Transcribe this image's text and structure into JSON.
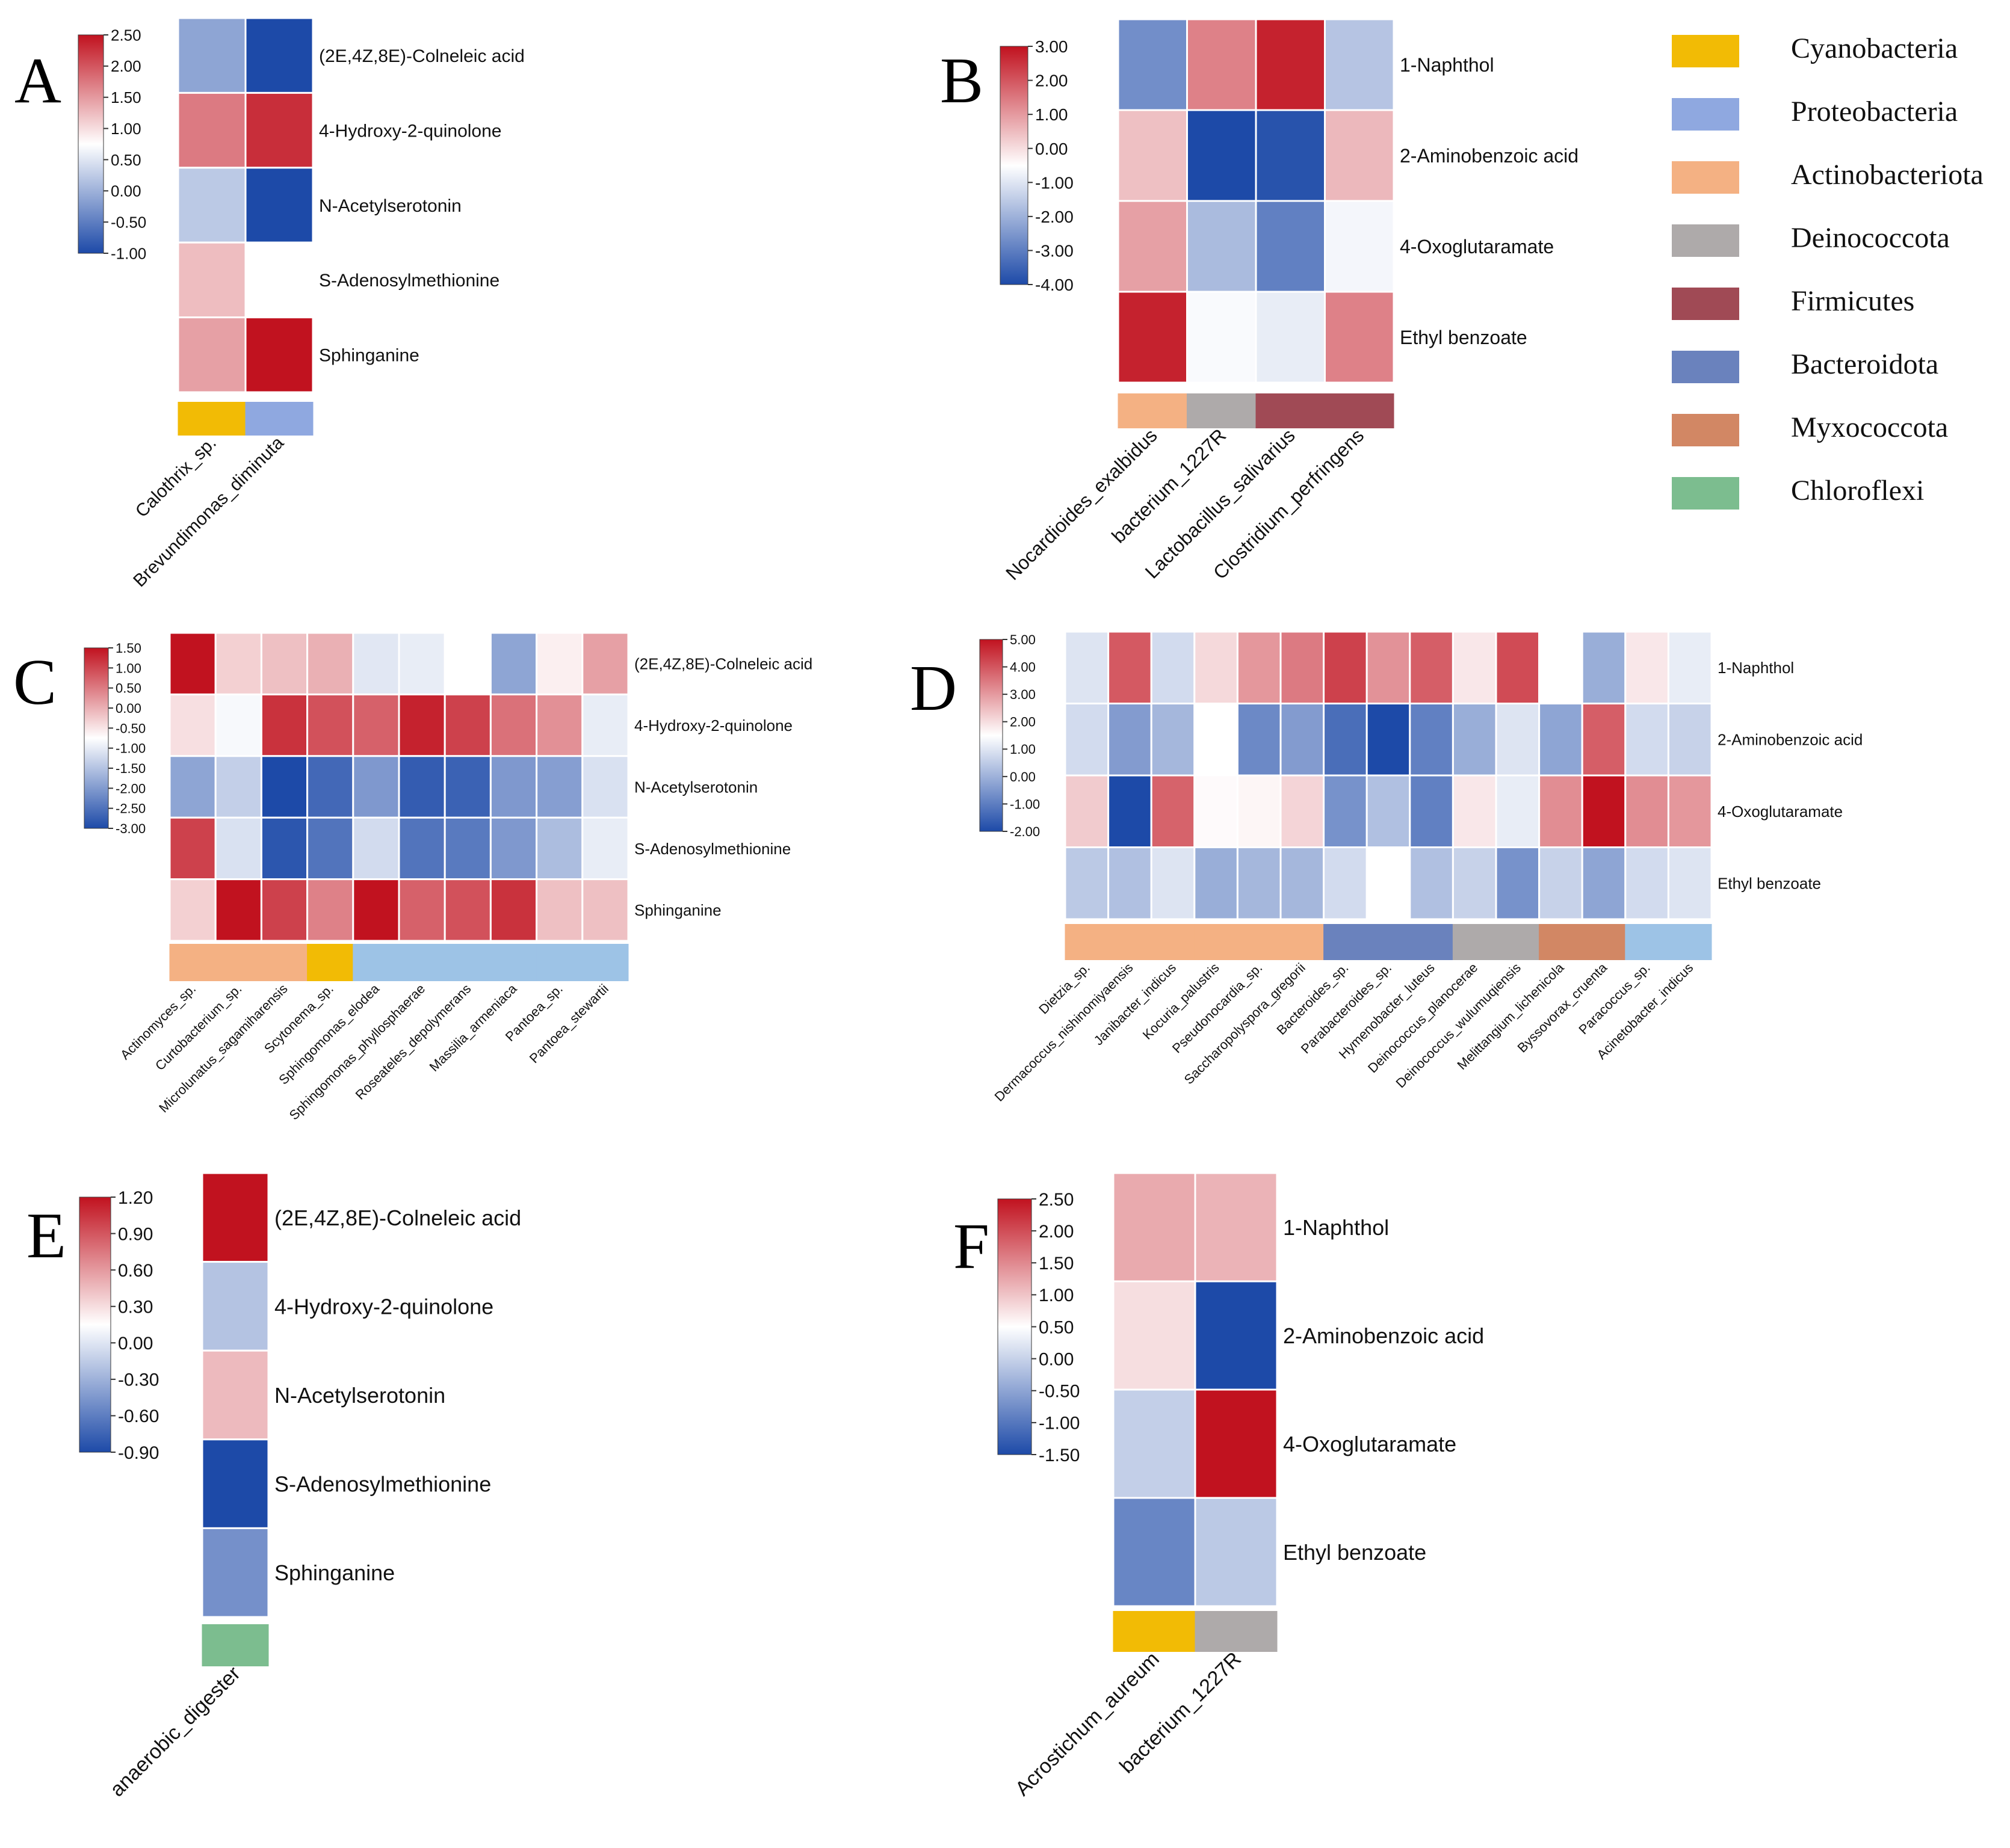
{
  "phylum_colors": {
    "Cyanobacteria": "#f2bb05",
    "Proteobacteria": "#8fa8e0",
    "Proteobacteria_light": "#9dc3e6",
    "Actinobacteriota": "#f4b183",
    "Deinococcota": "#aeaaaa",
    "Firmicutes": "#a04a55",
    "Bacteroidota": "#6a82bd",
    "Myxococcota": "#d28764",
    "Chloroflexi": "#7cbd8f"
  },
  "legend": {
    "items": [
      {
        "name": "Cyanobacteria",
        "color": "#f2bb05"
      },
      {
        "name": "Proteobacteria",
        "color": "#8fa8e0"
      },
      {
        "name": "Actinobacteriota",
        "color": "#f4b183"
      },
      {
        "name": "Deinococcota",
        "color": "#aeaaaa"
      },
      {
        "name": "Firmicutes",
        "color": "#a04a55"
      },
      {
        "name": "Bacteroidota",
        "color": "#6a82bd"
      },
      {
        "name": "Myxococcota",
        "color": "#d28764"
      },
      {
        "name": "Chloroflexi",
        "color": "#7cbd8f"
      }
    ]
  },
  "chart_data": [
    {
      "panel": "A",
      "type": "heatmap",
      "scale": {
        "min": -1.0,
        "max": 2.5,
        "ticks": [
          "2.50",
          "2.00",
          "1.50",
          "1.00",
          "0.50",
          "0.00",
          "-0.50",
          "-1.00"
        ]
      },
      "columns": [
        "Calothrix_sp.",
        "Brevundimonas_diminuta"
      ],
      "column_phyla": [
        "Cyanobacteria",
        "Proteobacteria"
      ],
      "rows": [
        "(2E,4Z,8E)-Colneleic acid",
        "4-Hydroxy-2-quinolone",
        "N-Acetylserotonin",
        "S-Adenosylmethionine",
        "Sphinganine"
      ],
      "values": [
        [
          -0.5,
          -1.0
        ],
        [
          1.4,
          2.2
        ],
        [
          -0.3,
          -1.0
        ],
        [
          0.7,
          0.0
        ],
        [
          1.0,
          2.5
        ]
      ]
    },
    {
      "panel": "B",
      "type": "heatmap",
      "scale": {
        "min": -4.0,
        "max": 3.0,
        "ticks": [
          "3.00",
          "2.00",
          "1.00",
          "0.00",
          "-1.00",
          "-2.00",
          "-3.00",
          "-4.00"
        ]
      },
      "columns": [
        "Nocardioides_exalbidus",
        "bacterium_1227R",
        "Lactobacillus_salivarius",
        "Clostridium_perfringens"
      ],
      "column_phyla": [
        "Actinobacteriota",
        "Deinococcota",
        "Firmicutes",
        "Firmicutes"
      ],
      "rows": [
        "1-Naphthol",
        "2-Aminobenzoic acid",
        "4-Oxoglutaramate",
        "Ethyl benzoate"
      ],
      "values": [
        [
          -2.5,
          1.6,
          2.8,
          -1.3
        ],
        [
          0.8,
          -4.0,
          -3.8,
          0.9
        ],
        [
          1.2,
          -1.5,
          -2.8,
          -0.2
        ],
        [
          2.8,
          -0.1,
          -0.4,
          1.6
        ]
      ]
    },
    {
      "panel": "C",
      "type": "heatmap",
      "scale": {
        "min": -3.0,
        "max": 1.5,
        "ticks": [
          "1.50",
          "1.00",
          "0.50",
          "0.00",
          "-0.50",
          "-1.00",
          "-1.50",
          "-2.00",
          "-2.50",
          "-3.00"
        ]
      },
      "columns": [
        "Actinomyces_sp.",
        "Curtobacterium_sp.",
        "Microlunatus_sagamiharensis",
        "Scytonema_sp.",
        "Sphingomonas_elodea",
        "Sphingomonas_phyllosphaerae",
        "Roseateles_depolymerans",
        "Massilia_armeniaca",
        "Pantoea_sp.",
        "Pantoea_stewartii"
      ],
      "column_phyla": [
        "Actinobacteriota",
        "Actinobacteriota",
        "Actinobacteriota",
        "Cyanobacteria",
        "Proteobacteria",
        "Proteobacteria",
        "Proteobacteria",
        "Proteobacteria",
        "Proteobacteria",
        "Proteobacteria"
      ],
      "rows": [
        "(2E,4Z,8E)-Colneleic acid",
        "4-Hydroxy-2-quinolone",
        "N-Acetylserotonin",
        "S-Adenosylmethionine",
        "Sphinganine"
      ],
      "values": [
        [
          1.5,
          0.3,
          0.4,
          0.5,
          -0.4,
          -0.3,
          0.0,
          -1.5,
          0.1,
          0.6
        ],
        [
          0.2,
          -0.1,
          1.3,
          1.1,
          1.0,
          1.4,
          1.2,
          0.9,
          0.7,
          -0.3
        ],
        [
          -1.5,
          -0.8,
          -3.0,
          -2.5,
          -1.7,
          -2.7,
          -2.6,
          -1.7,
          -1.6,
          -0.5
        ],
        [
          1.2,
          -0.5,
          -2.8,
          -2.3,
          -0.6,
          -2.3,
          -2.2,
          -1.7,
          -1.1,
          -0.3
        ],
        [
          0.3,
          1.5,
          1.2,
          0.8,
          1.5,
          1.0,
          1.1,
          1.3,
          0.4,
          0.4
        ]
      ]
    },
    {
      "panel": "D",
      "type": "heatmap",
      "scale": {
        "min": -2.0,
        "max": 5.0,
        "ticks": [
          "5.00",
          "4.00",
          "3.00",
          "2.00",
          "1.00",
          "0.00",
          "-1.00",
          "-2.00"
        ]
      },
      "columns": [
        "Dietzia_sp.",
        "Dermacoccus_nishinomiyaensis",
        "Janibacter_indicus",
        "Kocuria_palustris",
        "Pseudonocardia_sp.",
        "Saccharopolyspora_gregorii",
        "Bacteroides_sp.",
        "Parabacteroides_sp.",
        "Hymenobacter_luteus",
        "Deinococcus_planocerae",
        "Deinococcus_wulumuqiensis",
        "Melittangium_lichenicola",
        "Byssovorax_cruenta",
        "Paracoccus_sp.",
        "Acinetobacter_indicus"
      ],
      "column_phyla": [
        "Actinobacteriota",
        "Actinobacteriota",
        "Actinobacteriota",
        "Actinobacteriota",
        "Actinobacteriota",
        "Actinobacteriota",
        "Bacteroidota",
        "Bacteroidota",
        "Bacteroidota",
        "Deinococcota",
        "Deinococcota",
        "Myxococcota",
        "Myxococcota",
        "Proteobacteria",
        "Proteobacteria"
      ],
      "rows": [
        "1-Naphthol",
        "2-Aminobenzoic acid",
        "4-Oxoglutaramate",
        "Ethyl benzoate"
      ],
      "values": [
        [
          -0.3,
          3.5,
          -0.4,
          0.8,
          2.2,
          2.8,
          4.0,
          2.3,
          3.4,
          0.5,
          3.8,
          0.0,
          -0.9,
          0.5,
          -0.2
        ],
        [
          -0.4,
          -1.1,
          -0.8,
          0.0,
          -1.3,
          -1.1,
          -1.6,
          -2.0,
          -1.4,
          -0.9,
          -0.3,
          -1.0,
          3.4,
          -0.4,
          -0.5
        ],
        [
          1.1,
          -2.0,
          3.3,
          0.1,
          0.2,
          0.9,
          -1.2,
          -0.7,
          -1.4,
          0.5,
          -0.2,
          2.4,
          5.0,
          2.4,
          2.2
        ],
        [
          -0.6,
          -0.7,
          -0.3,
          -0.9,
          -0.8,
          -0.8,
          -0.4,
          0.0,
          -0.7,
          -0.5,
          -1.2,
          -0.5,
          -1.0,
          -0.4,
          -0.3
        ]
      ]
    },
    {
      "panel": "E",
      "type": "heatmap",
      "scale": {
        "min": -0.9,
        "max": 1.2,
        "ticks": [
          "1.20",
          "0.90",
          "0.60",
          "0.30",
          "0.00",
          "-0.30",
          "-0.60",
          "-0.90"
        ]
      },
      "columns": [
        "anaerobic_digester"
      ],
      "column_phyla": [
        "Chloroflexi"
      ],
      "rows": [
        "(2E,4Z,8E)-Colneleic acid",
        "4-Hydroxy-2-quinolone",
        "N-Acetylserotonin",
        "S-Adenosylmethionine",
        "Sphinganine"
      ],
      "values": [
        [
          1.2
        ],
        [
          -0.3
        ],
        [
          0.35
        ],
        [
          -0.9
        ],
        [
          -0.55
        ]
      ]
    },
    {
      "panel": "F",
      "type": "heatmap",
      "scale": {
        "min": -1.5,
        "max": 2.5,
        "ticks": [
          "2.50",
          "2.00",
          "1.50",
          "1.00",
          "0.50",
          "0.00",
          "-0.50",
          "-1.00",
          "-1.50"
        ]
      },
      "columns": [
        "Acrostichum_aureum",
        "bacterium_1227R"
      ],
      "column_phyla": [
        "Cyanobacteria",
        "Deinococcota"
      ],
      "rows": [
        "1-Naphthol",
        "2-Aminobenzoic acid",
        "4-Oxoglutaramate",
        "Ethyl benzoate"
      ],
      "values": [
        [
          0.9,
          0.8
        ],
        [
          0.35,
          -1.5
        ],
        [
          -0.4,
          2.5
        ],
        [
          -1.0,
          -0.45
        ]
      ]
    }
  ]
}
